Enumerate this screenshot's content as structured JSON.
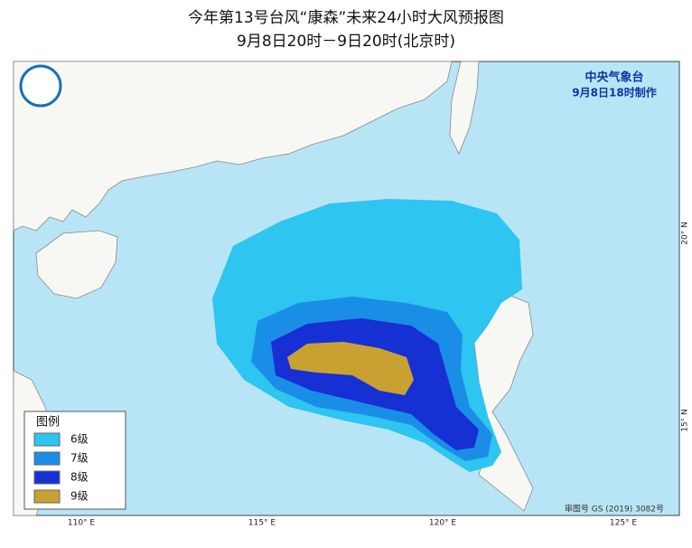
{
  "title": "今年第13号台风“康森”未来24小时大风预报图",
  "subtitle": "9月8日20时－9日20时(北京时)",
  "issuer": "中央气象台",
  "issue_time": "9月8日18时制作",
  "legend": {
    "title": "图例",
    "items": [
      {
        "label": "6级",
        "color": "#2ec5f0"
      },
      {
        "label": "7级",
        "color": "#1a8ee6"
      },
      {
        "label": "8级",
        "color": "#1630d4"
      },
      {
        "label": "9级",
        "color": "#c9a133"
      }
    ]
  },
  "lon_labels": [
    "110° E",
    "115° E",
    "120° E",
    "125° E"
  ],
  "lat_labels": [
    "20° N",
    "15° N"
  ],
  "approval": "审图号 GS (2019) 3082号"
}
